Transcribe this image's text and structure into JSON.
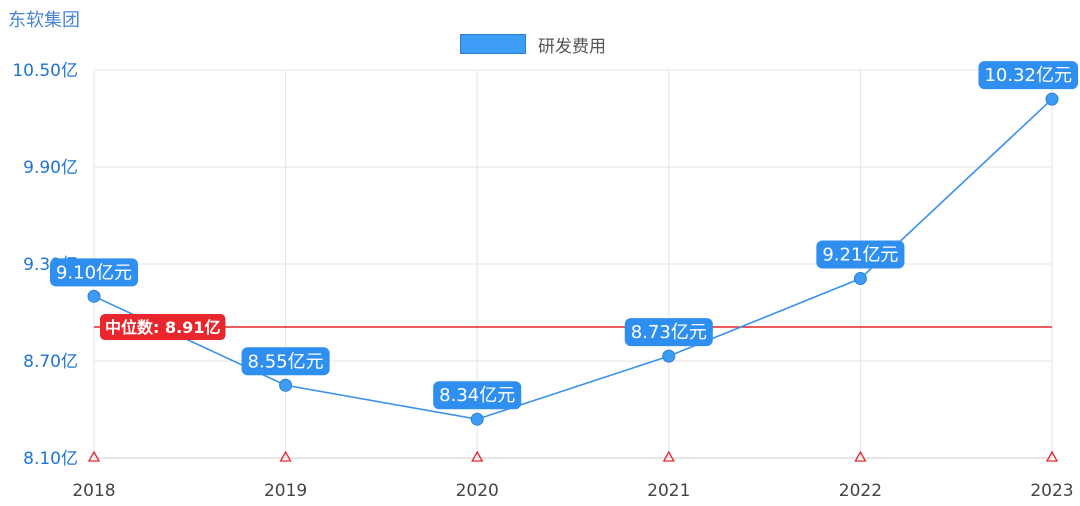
{
  "header": {
    "company": "东软集团"
  },
  "chart_data": {
    "type": "line",
    "categories": [
      "2018",
      "2019",
      "2020",
      "2021",
      "2022",
      "2023"
    ],
    "series": [
      {
        "name": "研发费用",
        "values": [
          9.1,
          8.55,
          8.34,
          8.73,
          9.21,
          10.32
        ],
        "labels": [
          "9.10亿元",
          "8.55亿元",
          "8.34亿元",
          "8.73亿元",
          "9.21亿元",
          "10.32亿元"
        ]
      }
    ],
    "ylim": [
      8.1,
      10.5
    ],
    "yticks": [
      8.1,
      8.7,
      9.3,
      9.9,
      10.5
    ],
    "ytick_labels": [
      "8.10亿",
      "8.70亿",
      "9.30亿",
      "9.90亿",
      "10.50亿"
    ],
    "median": {
      "value": 8.91,
      "label": "中位数: 8.91亿"
    },
    "legend_position": "top-center",
    "grid": true,
    "colors": {
      "line": "#3a92ea",
      "point": "#3d9cf5",
      "label_bg": "#2f8ff0",
      "median": "#e8262b",
      "grid": "#e3e3e3"
    }
  }
}
